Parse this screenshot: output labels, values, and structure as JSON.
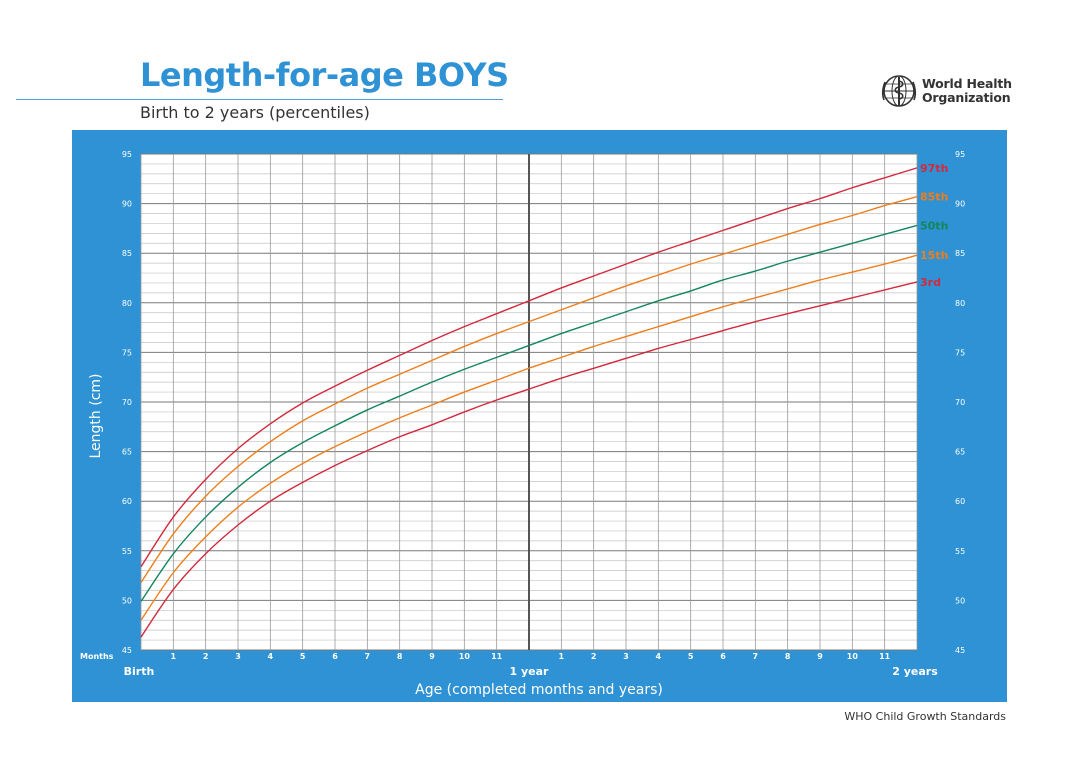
{
  "header": {
    "title": "Length-for-age BOYS",
    "subtitle": "Birth to 2 years (percentiles)"
  },
  "logo": {
    "line1": "World Health",
    "line2": "Organization"
  },
  "footer": {
    "text": "WHO Child Growth Standards"
  },
  "colors": {
    "panel": "#2e92d4",
    "p97": "#d3293c",
    "p85": "#ef7d1b",
    "p50": "#14865b",
    "p15": "#ef7d1b",
    "p3": "#d3293c"
  },
  "chart_data": {
    "type": "line",
    "xlabel": "Age (completed months and years)",
    "ylabel": "Length (cm)",
    "xlim": [
      0,
      24
    ],
    "ylim": [
      45,
      95
    ],
    "y_ticks": [
      45,
      50,
      55,
      60,
      65,
      70,
      75,
      80,
      85,
      90,
      95
    ],
    "x_unit_label": "Months",
    "x_tick_labels": [
      "Birth",
      "1",
      "2",
      "3",
      "4",
      "5",
      "6",
      "7",
      "8",
      "9",
      "10",
      "11",
      "1 year",
      "1",
      "2",
      "3",
      "4",
      "5",
      "6",
      "7",
      "8",
      "9",
      "10",
      "11",
      "2 years"
    ],
    "grid": true,
    "x": [
      0,
      1,
      2,
      3,
      4,
      5,
      6,
      7,
      8,
      9,
      10,
      11,
      12,
      13,
      14,
      15,
      16,
      17,
      18,
      19,
      20,
      21,
      22,
      23,
      24
    ],
    "series": [
      {
        "name": "97th",
        "color": "#d3293c",
        "values": [
          53.4,
          58.4,
          62.2,
          65.3,
          67.8,
          69.9,
          71.6,
          73.2,
          74.7,
          76.2,
          77.6,
          78.9,
          80.2,
          81.5,
          82.7,
          83.9,
          85.1,
          86.2,
          87.3,
          88.4,
          89.5,
          90.5,
          91.6,
          92.6,
          93.6
        ]
      },
      {
        "name": "85th",
        "color": "#ef7d1b",
        "values": [
          51.8,
          56.7,
          60.5,
          63.5,
          66.0,
          68.1,
          69.8,
          71.4,
          72.8,
          74.2,
          75.6,
          76.9,
          78.1,
          79.3,
          80.5,
          81.7,
          82.8,
          83.9,
          84.9,
          85.9,
          86.9,
          87.9,
          88.8,
          89.8,
          90.7
        ]
      },
      {
        "name": "50th",
        "color": "#14865b",
        "values": [
          49.9,
          54.7,
          58.4,
          61.4,
          63.9,
          65.9,
          67.6,
          69.2,
          70.6,
          72.0,
          73.3,
          74.5,
          75.7,
          76.9,
          78.0,
          79.1,
          80.2,
          81.2,
          82.3,
          83.2,
          84.2,
          85.1,
          86.0,
          86.9,
          87.8
        ]
      },
      {
        "name": "15th",
        "color": "#ef7d1b",
        "values": [
          48.0,
          52.8,
          56.4,
          59.4,
          61.8,
          63.8,
          65.5,
          67.0,
          68.4,
          69.7,
          71.0,
          72.2,
          73.4,
          74.5,
          75.6,
          76.6,
          77.6,
          78.6,
          79.6,
          80.5,
          81.4,
          82.3,
          83.1,
          83.9,
          84.8
        ]
      },
      {
        "name": "3rd",
        "color": "#d3293c",
        "values": [
          46.3,
          51.1,
          54.7,
          57.6,
          60.0,
          61.9,
          63.6,
          65.1,
          66.5,
          67.7,
          69.0,
          70.2,
          71.3,
          72.4,
          73.4,
          74.4,
          75.4,
          76.3,
          77.2,
          78.1,
          78.9,
          79.7,
          80.5,
          81.3,
          82.1
        ]
      }
    ]
  }
}
